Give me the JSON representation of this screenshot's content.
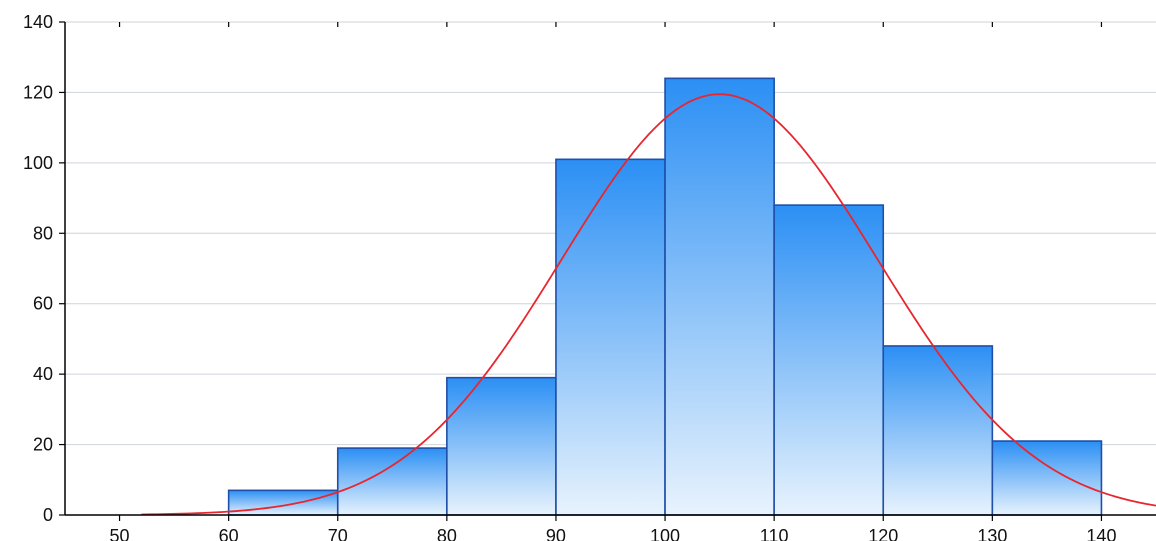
{
  "chart_data": {
    "type": "bar",
    "subtype": "histogram",
    "title": "",
    "xlabel": "",
    "ylabel": "",
    "xlim": [
      45,
      145
    ],
    "ylim": [
      0,
      140
    ],
    "x_ticks": [
      50,
      60,
      70,
      80,
      90,
      100,
      110,
      120,
      130,
      140
    ],
    "y_ticks": [
      0,
      20,
      40,
      60,
      80,
      100,
      120,
      140
    ],
    "bins": [
      {
        "start": 60,
        "end": 70,
        "value": 7
      },
      {
        "start": 70,
        "end": 80,
        "value": 19
      },
      {
        "start": 80,
        "end": 90,
        "value": 39
      },
      {
        "start": 90,
        "end": 100,
        "value": 101
      },
      {
        "start": 100,
        "end": 110,
        "value": 124
      },
      {
        "start": 110,
        "end": 120,
        "value": 88
      },
      {
        "start": 120,
        "end": 130,
        "value": 48
      },
      {
        "start": 130,
        "end": 140,
        "value": 21
      }
    ],
    "fitted_curve": {
      "type": "normal",
      "peak_x": 105,
      "peak_y": 119.5,
      "sd": 14.5,
      "x_range": [
        52,
        145
      ]
    },
    "grid": "horizontal",
    "legend": "none",
    "colors": {
      "bar_top": "#2b8ff4",
      "bar_bottom": "#e8f3fd",
      "bar_edge": "#1f4fa8",
      "curve": "#e8262f",
      "grid": "#cfd4da",
      "axis": "#000000"
    }
  }
}
